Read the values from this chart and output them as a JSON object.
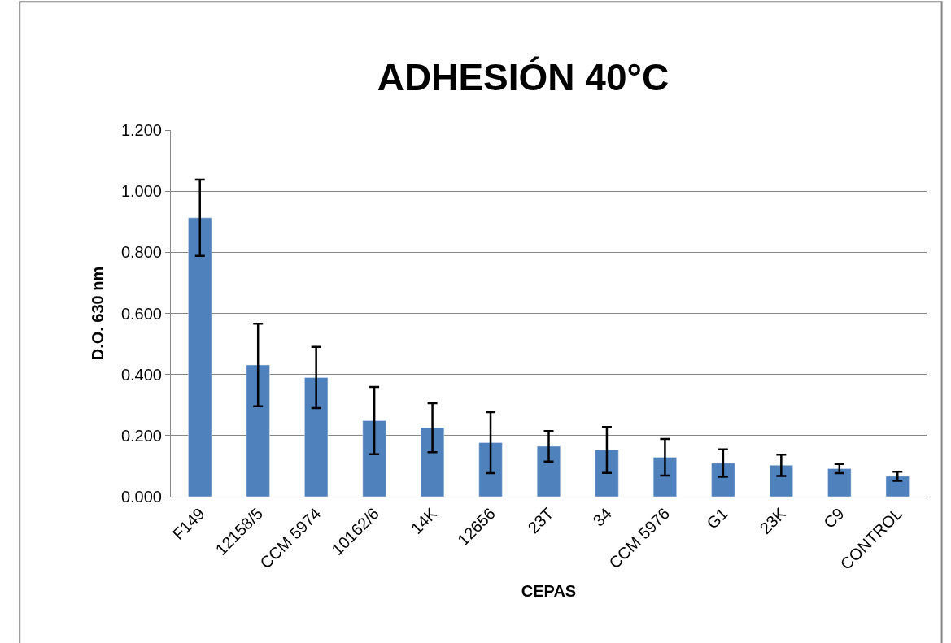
{
  "chart_data": {
    "type": "bar",
    "title": "ADHESIÓN 40°C",
    "xlabel": "CEPAS",
    "ylabel": "D.O. 630 nm",
    "categories": [
      "F149",
      "12158/5",
      "CCM 5974",
      "10162/6",
      "14K",
      "12656",
      "23T",
      "34",
      "CCM 5976",
      "G1",
      "23K",
      "C9",
      "CONTROL"
    ],
    "values": [
      0.913,
      0.431,
      0.39,
      0.249,
      0.226,
      0.177,
      0.165,
      0.153,
      0.129,
      0.11,
      0.103,
      0.092,
      0.067
    ],
    "errors": [
      0.125,
      0.135,
      0.1,
      0.11,
      0.08,
      0.1,
      0.05,
      0.075,
      0.06,
      0.045,
      0.035,
      0.015,
      0.015
    ],
    "color": "#4f81bd",
    "ylim": [
      0,
      1.2
    ],
    "yticks": [
      {
        "value": 0,
        "label": "0.000"
      },
      {
        "value": 0.2,
        "label": "0.200"
      },
      {
        "value": 0.4,
        "label": "0.400"
      },
      {
        "value": 0.6,
        "label": "0.600"
      },
      {
        "value": 0.8,
        "label": "0.800"
      },
      {
        "value": 1.0,
        "label": "1.000"
      },
      {
        "value": 1.2,
        "label": "1.200"
      }
    ],
    "grid": "y"
  }
}
